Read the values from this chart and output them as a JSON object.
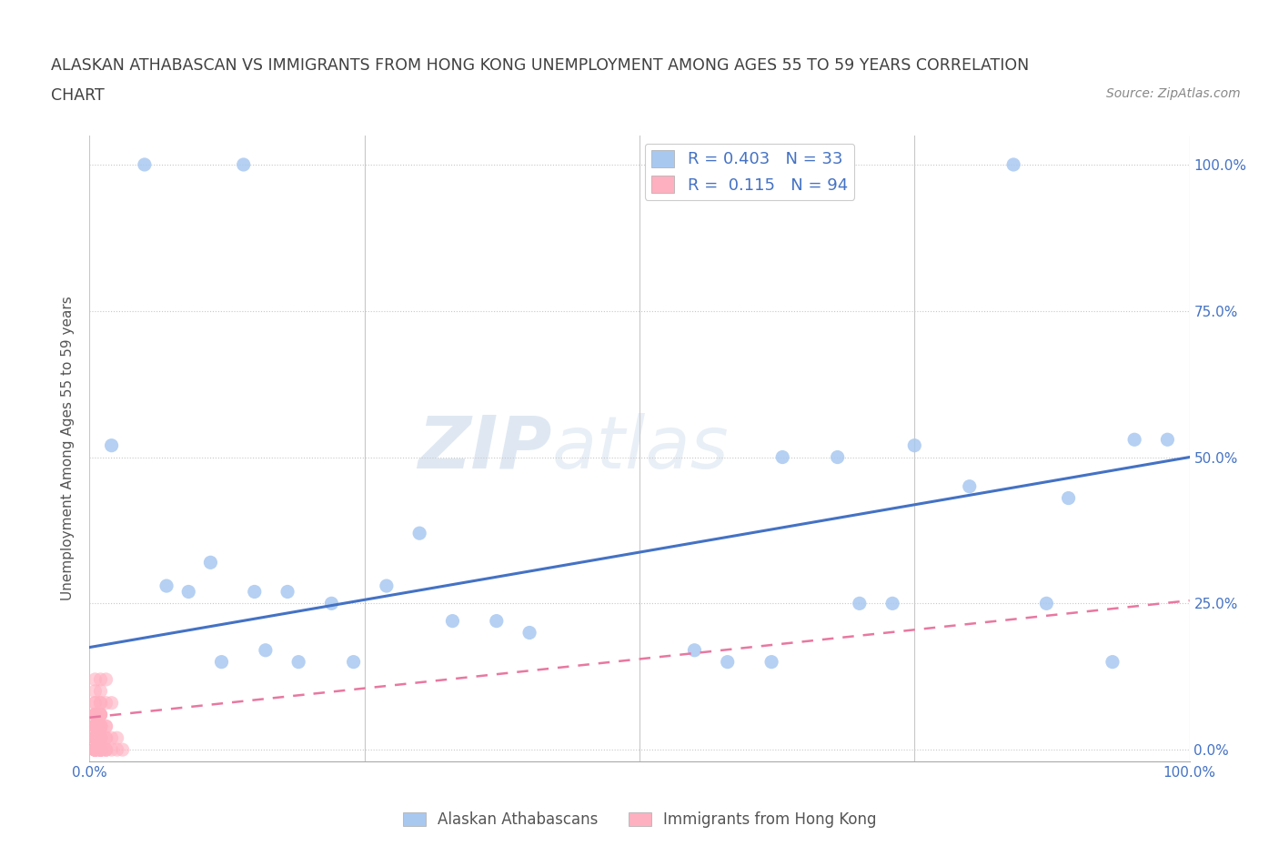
{
  "title_line1": "ALASKAN ATHABASCAN VS IMMIGRANTS FROM HONG KONG UNEMPLOYMENT AMONG AGES 55 TO 59 YEARS CORRELATION",
  "title_line2": "CHART",
  "source": "Source: ZipAtlas.com",
  "ylabel": "Unemployment Among Ages 55 to 59 years",
  "xlim": [
    0.0,
    1.0
  ],
  "ylim": [
    -0.02,
    1.05
  ],
  "xtick_vals": [
    0.0,
    0.25,
    0.5,
    0.75,
    1.0
  ],
  "xtick_labels": [
    "0.0%",
    "",
    "",
    "",
    "100.0%"
  ],
  "ytick_vals": [
    0.0,
    0.25,
    0.5,
    0.75,
    1.0
  ],
  "right_ytick_labels": [
    "0.0%",
    "25.0%",
    "50.0%",
    "75.0%",
    "100.0%"
  ],
  "watermark": "ZIPatlas",
  "legend_blue_label": "R = 0.403   N = 33",
  "legend_pink_label": "R =  0.115   N = 94",
  "blue_color": "#a8c8f0",
  "blue_line_color": "#4472c4",
  "pink_color": "#ffb0c0",
  "pink_line_color": "#e878a0",
  "bg_color": "#ffffff",
  "grid_color": "#c8c8c8",
  "title_color": "#404040",
  "axis_label_color": "#555555",
  "tick_label_color": "#4472c4",
  "blue_scatter_x": [
    0.05,
    0.14,
    0.02,
    0.07,
    0.09,
    0.11,
    0.16,
    0.22,
    0.27,
    0.33,
    0.37,
    0.4,
    0.55,
    0.58,
    0.63,
    0.68,
    0.7,
    0.73,
    0.8,
    0.84,
    0.87,
    0.89,
    0.93,
    0.95,
    0.12,
    0.19,
    0.15,
    0.18,
    0.24,
    0.3,
    0.62,
    0.98,
    0.75
  ],
  "blue_scatter_y": [
    1.0,
    1.0,
    0.52,
    0.28,
    0.27,
    0.32,
    0.17,
    0.25,
    0.28,
    0.22,
    0.22,
    0.2,
    0.17,
    0.15,
    0.5,
    0.5,
    0.25,
    0.25,
    0.45,
    1.0,
    0.25,
    0.43,
    0.15,
    0.53,
    0.15,
    0.15,
    0.27,
    0.27,
    0.15,
    0.37,
    0.15,
    0.53,
    0.52
  ],
  "pink_scatter_x": [
    0.005,
    0.01,
    0.015,
    0.02,
    0.025,
    0.005,
    0.01,
    0.015,
    0.005,
    0.01,
    0.005,
    0.01,
    0.015,
    0.02,
    0.005,
    0.01,
    0.005,
    0.01,
    0.015,
    0.005,
    0.01,
    0.005,
    0.005,
    0.01,
    0.005,
    0.01,
    0.005,
    0.01,
    0.005,
    0.005,
    0.01,
    0.005,
    0.01,
    0.005,
    0.01,
    0.015,
    0.02,
    0.025,
    0.03,
    0.005,
    0.01,
    0.005,
    0.01,
    0.015,
    0.005,
    0.01,
    0.005,
    0.01,
    0.005,
    0.01,
    0.005,
    0.01,
    0.005,
    0.01,
    0.015,
    0.005,
    0.005,
    0.01,
    0.005,
    0.01,
    0.015,
    0.005,
    0.01,
    0.005,
    0.005,
    0.01,
    0.005,
    0.01,
    0.005,
    0.01,
    0.005,
    0.01,
    0.005,
    0.005,
    0.01,
    0.005,
    0.01,
    0.015,
    0.005,
    0.01,
    0.005,
    0.01,
    0.005,
    0.01,
    0.005,
    0.01,
    0.005,
    0.005,
    0.01,
    0.005,
    0.005,
    0.01,
    0.005,
    0.01
  ],
  "pink_scatter_y": [
    0.02,
    0.02,
    0.02,
    0.02,
    0.02,
    0.04,
    0.04,
    0.04,
    0.06,
    0.06,
    0.08,
    0.08,
    0.08,
    0.08,
    0.1,
    0.1,
    0.12,
    0.12,
    0.12,
    0.0,
    0.0,
    0.02,
    0.04,
    0.04,
    0.06,
    0.06,
    0.0,
    0.0,
    0.02,
    0.04,
    0.04,
    0.06,
    0.06,
    0.0,
    0.0,
    0.0,
    0.0,
    0.0,
    0.0,
    0.02,
    0.02,
    0.04,
    0.04,
    0.04,
    0.06,
    0.06,
    0.08,
    0.08,
    0.02,
    0.02,
    0.04,
    0.04,
    0.0,
    0.0,
    0.0,
    0.02,
    0.04,
    0.04,
    0.02,
    0.02,
    0.02,
    0.0,
    0.0,
    0.02,
    0.04,
    0.04,
    0.02,
    0.02,
    0.0,
    0.0,
    0.02,
    0.02,
    0.04,
    0.02,
    0.02,
    0.0,
    0.0,
    0.0,
    0.02,
    0.02,
    0.04,
    0.04,
    0.02,
    0.02,
    0.0,
    0.0,
    0.02,
    0.04,
    0.04,
    0.02,
    0.0,
    0.0,
    0.02,
    0.02
  ]
}
